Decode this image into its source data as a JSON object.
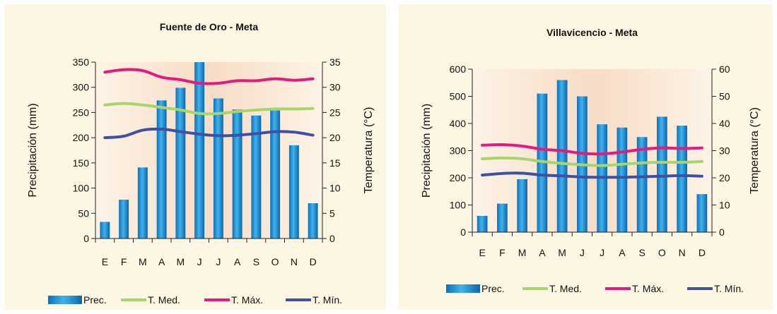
{
  "chart_data": [
    {
      "type": "bar",
      "title": "Fuente de Oro - Meta",
      "categories": [
        "E",
        "F",
        "M",
        "A",
        "M",
        "J",
        "J",
        "A",
        "S",
        "O",
        "N",
        "D"
      ],
      "ylabel": "Precipitación (mm)",
      "y2label": "Temperatura (°C)",
      "ylim": [
        0,
        350
      ],
      "y2lim": [
        0,
        35
      ],
      "yticks": [
        0,
        50,
        100,
        150,
        200,
        250,
        300,
        350
      ],
      "y2ticks": [
        0,
        5,
        10,
        15,
        20,
        25,
        30,
        35
      ],
      "series": [
        {
          "name": "Prec.",
          "kind": "bar",
          "axis": "left",
          "values": [
            33,
            77,
            141,
            274,
            299,
            350,
            278,
            256,
            244,
            254,
            185,
            70
          ]
        },
        {
          "name": "T. Med.",
          "kind": "line",
          "axis": "right",
          "values": [
            26.5,
            26.8,
            26.5,
            26.0,
            25.5,
            24.8,
            24.8,
            25.2,
            25.5,
            25.7,
            25.7,
            25.8
          ]
        },
        {
          "name": "T. Máx.",
          "kind": "line",
          "axis": "right",
          "values": [
            33.0,
            33.5,
            33.3,
            32.0,
            31.5,
            30.8,
            30.8,
            31.3,
            31.3,
            31.7,
            31.4,
            31.7
          ]
        },
        {
          "name": "T. Mín.",
          "kind": "line",
          "axis": "right",
          "values": [
            20.0,
            20.3,
            21.5,
            21.7,
            21.2,
            20.7,
            20.4,
            20.5,
            20.8,
            21.2,
            21.1,
            20.5
          ]
        }
      ],
      "colors": {
        "Prec.": "#1b8fd6",
        "T. Med.": "#a6d66a",
        "T. Máx.": "#e6197e",
        "T. Mín.": "#3d50a3"
      },
      "legend": "bottom",
      "grid": false
    },
    {
      "type": "bar",
      "title": "Villavicencio - Meta",
      "categories": [
        "E",
        "F",
        "M",
        "A",
        "M",
        "J",
        "J",
        "A",
        "S",
        "O",
        "N",
        "D"
      ],
      "ylabel": "Precipitación (mm)",
      "y2label": "Temperatura (°C)",
      "ylim": [
        0,
        600
      ],
      "y2lim": [
        0,
        60
      ],
      "yticks": [
        0,
        100,
        200,
        300,
        400,
        500,
        600
      ],
      "y2ticks": [
        0,
        10,
        20,
        30,
        40,
        50,
        60
      ],
      "series": [
        {
          "name": "Prec.",
          "kind": "bar",
          "axis": "left",
          "values": [
            60,
            105,
            195,
            510,
            560,
            500,
            397,
            385,
            350,
            425,
            392,
            140
          ]
        },
        {
          "name": "T. Med.",
          "kind": "line",
          "axis": "right",
          "values": [
            27.0,
            27.3,
            27.0,
            26.0,
            25.3,
            24.8,
            24.5,
            25.0,
            25.5,
            25.7,
            25.7,
            26.0
          ]
        },
        {
          "name": "T. Máx.",
          "kind": "line",
          "axis": "right",
          "values": [
            32.0,
            32.2,
            31.7,
            30.5,
            30.0,
            29.0,
            28.8,
            29.5,
            30.5,
            31.0,
            30.8,
            31.0
          ]
        },
        {
          "name": "T. Mín.",
          "kind": "line",
          "axis": "right",
          "values": [
            21.0,
            21.6,
            21.7,
            21.0,
            20.7,
            20.3,
            20.2,
            20.2,
            20.4,
            20.6,
            20.8,
            20.6
          ]
        }
      ],
      "colors": {
        "Prec.": "#1b8fd6",
        "T. Med.": "#a6d66a",
        "T. Máx.": "#e6197e",
        "T. Mín.": "#3d50a3"
      },
      "legend": "bottom",
      "grid": false
    }
  ]
}
